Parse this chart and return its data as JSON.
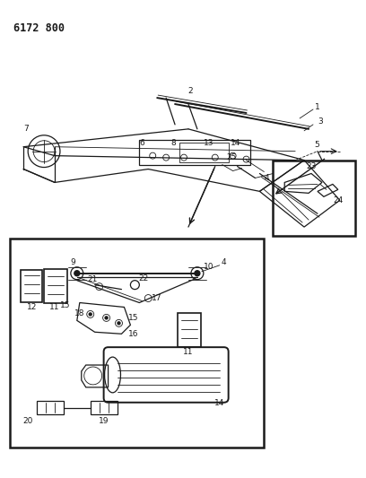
{
  "title": "6172 800",
  "bg_color": "#ffffff",
  "line_color": "#1a1a1a",
  "fig_width": 4.08,
  "fig_height": 5.33,
  "dpi": 100,
  "title_fontsize": 8.5,
  "title_fontweight": "bold"
}
